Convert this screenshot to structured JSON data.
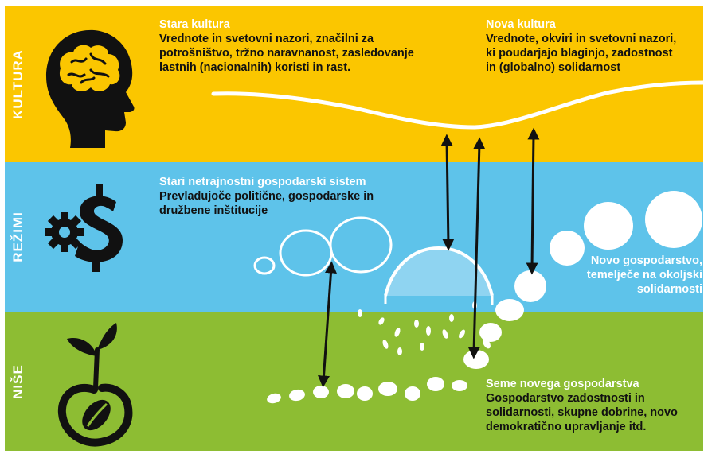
{
  "colors": {
    "culture": "#fbc600",
    "regimes": "#5ec3ea",
    "niches": "#8dbd33",
    "ink": "#111111",
    "white": "#ffffff"
  },
  "layers": {
    "culture": {
      "label": "KULTURA",
      "icon": "brain-head-icon"
    },
    "regimes": {
      "label": "REŽIMI",
      "icon": "gear-dollar-icon"
    },
    "niches": {
      "label": "NIŠE",
      "icon": "seedling-icon"
    }
  },
  "blocks": {
    "old_culture": {
      "title": "Stara kultura",
      "body": "Vrednote in svetovni nazori, značilni za potrošništvo, tržno naravnanost, zasledovanje lastnih (nacionalnih) koristi in rast."
    },
    "new_culture": {
      "title": "Nova kultura",
      "body": "Vrednote, okviri in svetovni nazori, ki poudarjajo blaginjo, zadostnost in (globalno) solidarnost"
    },
    "old_system": {
      "title": "Stari netrajnostni gospodarski sistem",
      "body": "Prevladujoče politične, gospodarske in družbene inštitucije"
    },
    "new_economy": {
      "body": "Novo gospodarstvo, temelječe na okoljski solidarnosti"
    },
    "seeds": {
      "title": "Seme novega gospodarstva",
      "body": "Gospodarstvo zadostnosti in solidarnosti, skupne dobrine, novo demokratično upravljanje itd."
    }
  }
}
